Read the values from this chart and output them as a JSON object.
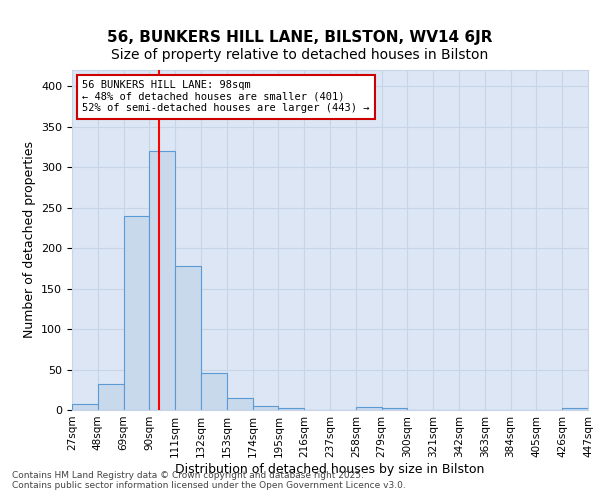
{
  "title": "56, BUNKERS HILL LANE, BILSTON, WV14 6JR",
  "subtitle": "Size of property relative to detached houses in Bilston",
  "xlabel": "Distribution of detached houses by size in Bilston",
  "ylabel": "Number of detached properties",
  "bar_color": "#c9d9ec",
  "bar_edge_color": "#5b9bd5",
  "bin_edges": [
    27,
    48,
    69,
    90,
    111,
    132,
    153,
    174,
    195,
    216,
    237,
    258,
    279,
    300,
    321,
    342,
    363,
    384,
    405,
    426,
    447
  ],
  "bar_heights": [
    8,
    32,
    240,
    320,
    178,
    46,
    15,
    5,
    3,
    0,
    0,
    4,
    2,
    0,
    0,
    0,
    0,
    0,
    0,
    2
  ],
  "red_line_x": 98,
  "annotation_text": "56 BUNKERS HILL LANE: 98sqm\n← 48% of detached houses are smaller (401)\n52% of semi-detached houses are larger (443) →",
  "annotation_box_color": "#ffffff",
  "annotation_box_edge_color": "#cc0000",
  "ylim": [
    0,
    420
  ],
  "xlim": [
    27,
    447
  ],
  "tick_labels": [
    "27sqm",
    "48sqm",
    "69sqm",
    "90sqm",
    "111sqm",
    "132sqm",
    "153sqm",
    "174sqm",
    "195sqm",
    "216sqm",
    "237sqm",
    "258sqm",
    "279sqm",
    "300sqm",
    "321sqm",
    "342sqm",
    "363sqm",
    "384sqm",
    "405sqm",
    "426sqm",
    "447sqm"
  ],
  "grid_color": "#c8d4e8",
  "plot_bg_color": "#dce6f5",
  "figure_bg_color": "#ffffff",
  "title_fontsize": 11,
  "subtitle_fontsize": 10,
  "axis_label_fontsize": 9,
  "tick_fontsize": 7.5,
  "footer_text": "Contains HM Land Registry data © Crown copyright and database right 2025.\nContains public sector information licensed under the Open Government Licence v3.0."
}
